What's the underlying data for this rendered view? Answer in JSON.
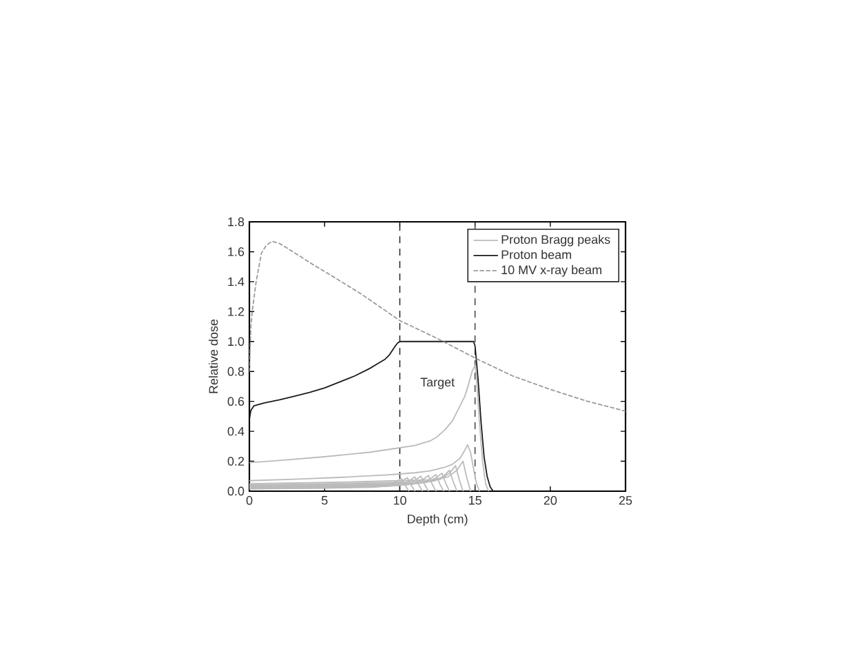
{
  "chart_data": {
    "type": "line",
    "xlabel": "Depth (cm)",
    "ylabel": "Relative dose",
    "xlim": [
      0,
      25
    ],
    "xticks": [
      0,
      5,
      10,
      15,
      20,
      25
    ],
    "ylim": [
      0,
      1.8
    ],
    "yticks": [
      {
        "value": 0,
        "label": "0.0"
      },
      0.2,
      0.4,
      0.6,
      0.8,
      {
        "value": 1,
        "label": "1.0"
      },
      1.2,
      1.4,
      1.6,
      1.8
    ],
    "legend": "top right",
    "line_style": "solid",
    "series": [
      {
        "name": "Proton Bragg peaks",
        "color": "#bbbbbb",
        "x": [
          0,
          2,
          5,
          8,
          10,
          11,
          12,
          12.5,
          13,
          13.5,
          14,
          14.3,
          14.5,
          14.8,
          15,
          15.1,
          15.3,
          15.5,
          15.7,
          15.9
        ],
        "values": [
          0.19,
          0.205,
          0.23,
          0.26,
          0.29,
          0.305,
          0.335,
          0.365,
          0.41,
          0.47,
          0.57,
          0.63,
          0.69,
          0.8,
          0.84,
          0.75,
          0.45,
          0.2,
          0.05,
          0
        ]
      },
      {
        "color": "#bbbbbb",
        "x": [
          0,
          3,
          6,
          9,
          10,
          11,
          12,
          13,
          13.5,
          14,
          14.3,
          14.5,
          14.7,
          14.9,
          15.1,
          15.3
        ],
        "values": [
          0.07,
          0.08,
          0.092,
          0.108,
          0.115,
          0.123,
          0.135,
          0.16,
          0.18,
          0.22,
          0.27,
          0.31,
          0.26,
          0.15,
          0.05,
          0
        ]
      },
      {
        "color": "#bbbbbb",
        "x": [
          0,
          5,
          8.1,
          9.1,
          9.7,
          10.1,
          10.35,
          10.6
        ],
        "values": [
          0.015,
          0.02,
          0.026,
          0.034,
          0.06,
          0.085,
          0.04,
          0
        ]
      },
      {
        "color": "#bbbbbb",
        "x": [
          0,
          5.2,
          8.5,
          9.5,
          10.1,
          10.5,
          10.75,
          11.0
        ],
        "values": [
          0.018,
          0.023,
          0.03,
          0.038,
          0.065,
          0.09,
          0.04,
          0
        ]
      },
      {
        "color": "#bbbbbb",
        "x": [
          0,
          5.5,
          9,
          10,
          10.6,
          11,
          11.25,
          11.5
        ],
        "values": [
          0.02,
          0.025,
          0.032,
          0.04,
          0.068,
          0.095,
          0.043,
          0
        ]
      },
      {
        "color": "#bbbbbb",
        "x": [
          0,
          5.7,
          9.4,
          10.4,
          11,
          11.4,
          11.65,
          11.9
        ],
        "values": [
          0.022,
          0.028,
          0.035,
          0.044,
          0.072,
          0.1,
          0.045,
          0
        ]
      },
      {
        "color": "#bbbbbb",
        "x": [
          0,
          6,
          9.9,
          10.9,
          11.5,
          11.9,
          12.15,
          12.4
        ],
        "values": [
          0.025,
          0.031,
          0.039,
          0.048,
          0.076,
          0.105,
          0.047,
          0
        ]
      },
      {
        "color": "#bbbbbb",
        "x": [
          0,
          6.2,
          10.4,
          11.4,
          12,
          12.4,
          12.65,
          12.9
        ],
        "values": [
          0.028,
          0.035,
          0.043,
          0.053,
          0.08,
          0.11,
          0.05,
          0
        ]
      },
      {
        "color": "#bbbbbb",
        "x": [
          0,
          6.4,
          10.8,
          11.8,
          12.4,
          12.8,
          13.05,
          13.3
        ],
        "values": [
          0.032,
          0.04,
          0.049,
          0.06,
          0.088,
          0.12,
          0.054,
          0
        ]
      },
      {
        "color": "#bbbbbb",
        "x": [
          0,
          6.6,
          11.3,
          12.3,
          12.9,
          13.3,
          13.55,
          13.8
        ],
        "values": [
          0.036,
          0.045,
          0.055,
          0.068,
          0.1,
          0.14,
          0.063,
          0
        ]
      },
      {
        "color": "#bbbbbb",
        "x": [
          0,
          6.8,
          11.7,
          12.7,
          13.3,
          13.7,
          13.95,
          14.2
        ],
        "values": [
          0.042,
          0.052,
          0.064,
          0.08,
          0.12,
          0.17,
          0.077,
          0
        ]
      },
      {
        "color": "#bbbbbb",
        "x": [
          0,
          7,
          12.2,
          13.2,
          13.8,
          14.2,
          14.45,
          14.7
        ],
        "values": [
          0.05,
          0.062,
          0.076,
          0.095,
          0.14,
          0.2,
          0.09,
          0
        ]
      },
      {
        "name": "Proton beam",
        "color": "#1a1a1a",
        "x": [
          0,
          0.1,
          0.3,
          1,
          2,
          3,
          4,
          5,
          6,
          7,
          8,
          8.5,
          9,
          9.3,
          9.5,
          9.7,
          9.85,
          10,
          10.2,
          11,
          12,
          13,
          14,
          14.9,
          15.0,
          15.2,
          15.4,
          15.6,
          15.8,
          16.0,
          16.2
        ],
        "values": [
          0.48,
          0.54,
          0.57,
          0.59,
          0.61,
          0.635,
          0.66,
          0.69,
          0.73,
          0.77,
          0.82,
          0.85,
          0.88,
          0.91,
          0.94,
          0.97,
          0.99,
          1.0,
          1.0,
          1.0,
          1.0,
          1.0,
          1.0,
          1.0,
          0.97,
          0.75,
          0.46,
          0.23,
          0.1,
          0.03,
          0
        ]
      },
      {
        "name": "10 MV x-ray beam",
        "color": "#999999",
        "line_style": "dashed",
        "x": [
          0,
          0.1,
          0.2,
          0.45,
          0.8,
          1.1,
          1.5,
          2,
          2.5,
          4.3,
          5.3,
          7.4,
          10,
          12.5,
          15,
          17.5,
          20,
          22.5,
          25
        ],
        "values": [
          0.8,
          1.1,
          1.21,
          1.4,
          1.59,
          1.64,
          1.67,
          1.655,
          1.625,
          1.51,
          1.45,
          1.32,
          1.14,
          1.02,
          0.89,
          0.77,
          0.68,
          0.6,
          0.535
        ]
      }
    ],
    "ref_lines": [
      {
        "axis": "x",
        "value": 10,
        "color": "#222222",
        "line_style": "dashed"
      },
      {
        "axis": "x",
        "value": 15,
        "color": "#222222",
        "line_style": "dashed"
      }
    ],
    "annotations": [
      "Target"
    ]
  }
}
